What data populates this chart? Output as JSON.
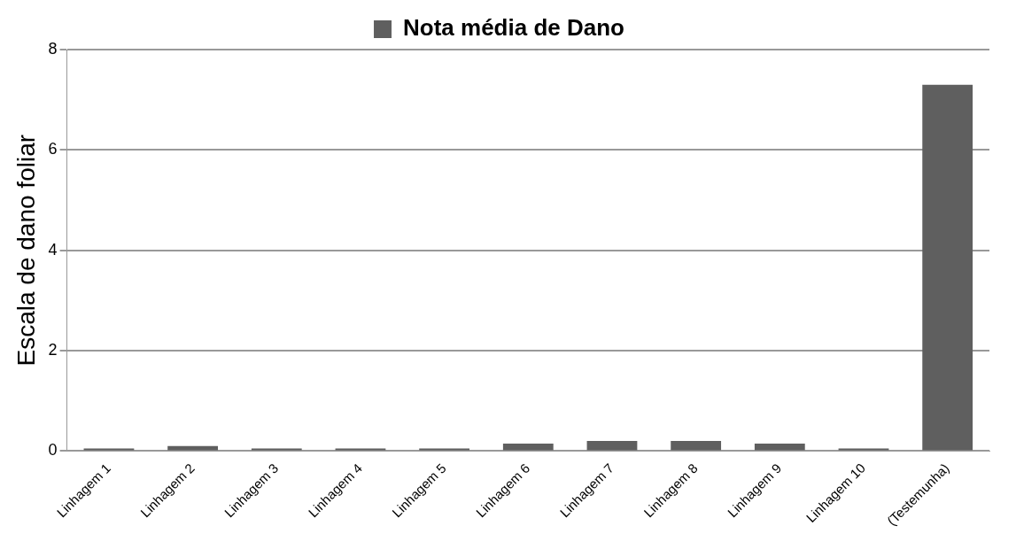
{
  "chart_data": {
    "type": "bar",
    "ylabel": "Escala de dano foliar",
    "categories": [
      "Linhagem 1",
      "Linhagem 2",
      "Linhagem 3",
      "Linhagem 4",
      "Linhagem 5",
      "Linhagem 6",
      "Linhagem 7",
      "Linhagem 8",
      "Linhagem 9",
      "Linhagem 10",
      "(Testemunha)"
    ],
    "series": [
      {
        "name": "Nota média de Dano",
        "color": "#5f5f5f",
        "values": [
          0.05,
          0.1,
          0.05,
          0.05,
          0.05,
          0.15,
          0.2,
          0.2,
          0.15,
          0.05,
          7.3
        ]
      }
    ],
    "ylim": [
      0,
      8
    ],
    "yticks": [
      0,
      2,
      4,
      6,
      8
    ],
    "grid": "y",
    "legend": "top"
  }
}
